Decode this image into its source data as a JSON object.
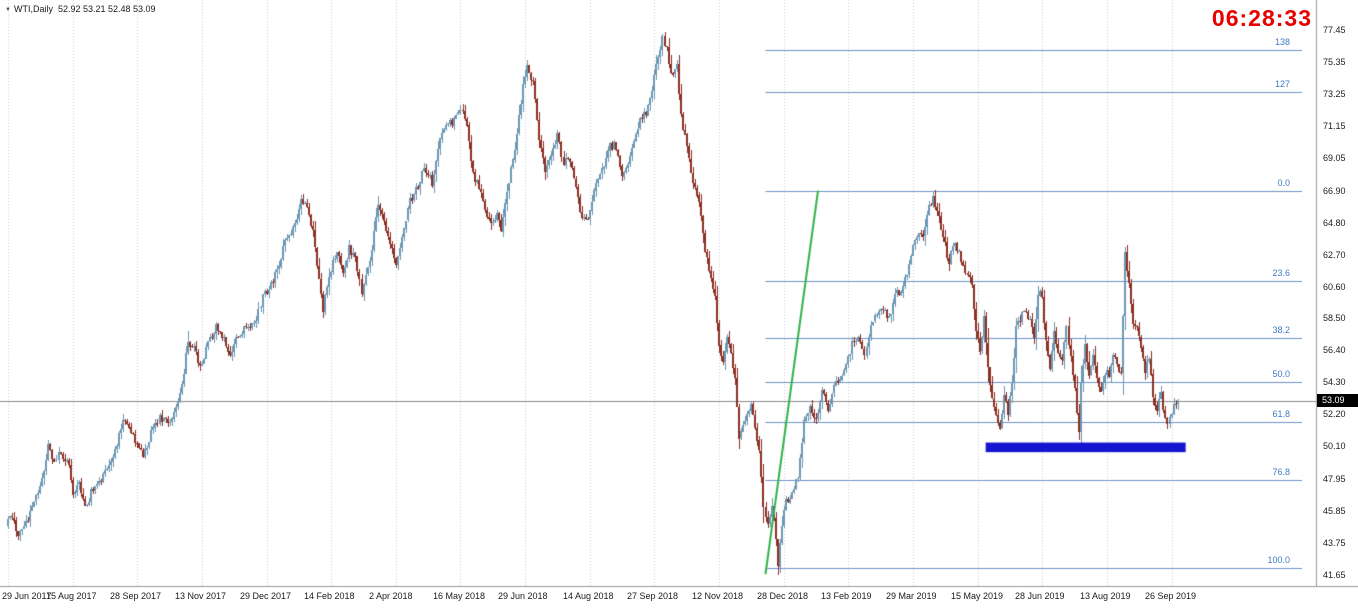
{
  "window": {
    "symbol_label": "WTI,Daily",
    "ohlc_text": "52.92 53.21 52.48 53.09",
    "clock": "06:28:33"
  },
  "axes": {
    "price_labels": [
      "77.45",
      "75.35",
      "73.25",
      "71.15",
      "69.05",
      "66.90",
      "64.80",
      "62.70",
      "60.60",
      "58.50",
      "56.40",
      "54.30",
      "52.20",
      "50.10",
      "47.95",
      "45.85",
      "43.75",
      "41.65"
    ],
    "date_labels": [
      "29 Jun 2017",
      "15 Aug 2017",
      "28 Sep 2017",
      "13 Nov 2017",
      "29 Dec 2017",
      "14 Feb 2018",
      "2 Apr 2018",
      "16 May 2018",
      "29 Jun 2018",
      "14 Aug 2018",
      "27 Sep 2018",
      "12 Nov 2018",
      "28 Dec 2018",
      "13 Feb 2019",
      "29 Mar 2019",
      "15 May 2019",
      "28 Jun 2019",
      "13 Aug 2019",
      "26 Sep 2019"
    ],
    "current_price": "53.09"
  },
  "theme": {
    "clock_color": "#e60000",
    "badge_bg": "#000000",
    "fib_label_color": "#3f7bc0"
  },
  "chart_data": {
    "type": "candlestick",
    "symbol": "WTI",
    "timeframe": "Daily",
    "title": "WTI,Daily",
    "ohlc_current": {
      "open": 52.92,
      "high": 53.21,
      "low": 52.48,
      "close": 53.09
    },
    "ylim": [
      41.65,
      77.45
    ],
    "n_candles": 580,
    "grid": "vertical-dashed",
    "price_path": [
      [
        0,
        44.9
      ],
      [
        3,
        45.6
      ],
      [
        6,
        44.2
      ],
      [
        10,
        45.1
      ],
      [
        14,
        46.4
      ],
      [
        18,
        47.8
      ],
      [
        21,
        50.1
      ],
      [
        24,
        49.1
      ],
      [
        27,
        49.7
      ],
      [
        31,
        48.7
      ],
      [
        33,
        47.1
      ],
      [
        36,
        47.8
      ],
      [
        39,
        46.0
      ],
      [
        43,
        47.4
      ],
      [
        47,
        47.9
      ],
      [
        50,
        48.6
      ],
      [
        54,
        49.8
      ],
      [
        58,
        51.8
      ],
      [
        61,
        51.4
      ],
      [
        64,
        50.4
      ],
      [
        68,
        49.4
      ],
      [
        72,
        51.0
      ],
      [
        76,
        52.0
      ],
      [
        80,
        51.6
      ],
      [
        84,
        52.7
      ],
      [
        87,
        54.1
      ],
      [
        90,
        57.0
      ],
      [
        93,
        56.7
      ],
      [
        96,
        55.3
      ],
      [
        100,
        56.8
      ],
      [
        104,
        58.0
      ],
      [
        107,
        57.3
      ],
      [
        111,
        56.2
      ],
      [
        115,
        57.4
      ],
      [
        119,
        57.9
      ],
      [
        123,
        58.1
      ],
      [
        127,
        59.9
      ],
      [
        130,
        60.4
      ],
      [
        134,
        61.7
      ],
      [
        138,
        63.6
      ],
      [
        142,
        64.4
      ],
      [
        146,
        66.2
      ],
      [
        149,
        65.7
      ],
      [
        152,
        64.1
      ],
      [
        155,
        61.0
      ],
      [
        157,
        59.2
      ],
      [
        160,
        61.4
      ],
      [
        164,
        62.8
      ],
      [
        167,
        61.6
      ],
      [
        170,
        63.1
      ],
      [
        173,
        62.5
      ],
      [
        176,
        60.2
      ],
      [
        180,
        62.2
      ],
      [
        184,
        65.9
      ],
      [
        187,
        64.8
      ],
      [
        190,
        63.3
      ],
      [
        193,
        62.2
      ],
      [
        196,
        63.6
      ],
      [
        200,
        66.3
      ],
      [
        204,
        67.2
      ],
      [
        207,
        68.5
      ],
      [
        211,
        67.4
      ],
      [
        214,
        69.8
      ],
      [
        217,
        71.1
      ],
      [
        221,
        71.4
      ],
      [
        225,
        72.3
      ],
      [
        228,
        71.2
      ],
      [
        231,
        67.9
      ],
      [
        234,
        67.1
      ],
      [
        237,
        65.8
      ],
      [
        240,
        64.7
      ],
      [
        243,
        65.2
      ],
      [
        245,
        64.3
      ],
      [
        247,
        65.9
      ],
      [
        250,
        68.2
      ],
      [
        253,
        70.6
      ],
      [
        256,
        73.9
      ],
      [
        258,
        75.2
      ],
      [
        261,
        73.9
      ],
      [
        264,
        70.4
      ],
      [
        267,
        68.2
      ],
      [
        270,
        69.4
      ],
      [
        273,
        70.5
      ],
      [
        276,
        68.8
      ],
      [
        279,
        69.0
      ],
      [
        282,
        67.1
      ],
      [
        285,
        65.0
      ],
      [
        288,
        64.9
      ],
      [
        290,
        66.1
      ],
      [
        293,
        67.8
      ],
      [
        296,
        68.6
      ],
      [
        299,
        69.9
      ],
      [
        302,
        69.8
      ],
      [
        305,
        67.6
      ],
      [
        308,
        68.5
      ],
      [
        311,
        70.3
      ],
      [
        314,
        71.5
      ],
      [
        317,
        72.0
      ],
      [
        320,
        73.4
      ],
      [
        322,
        75.3
      ],
      [
        325,
        76.9
      ],
      [
        327,
        76.2
      ],
      [
        329,
        74.4
      ],
      [
        332,
        75.0
      ],
      [
        334,
        71.9
      ],
      [
        337,
        69.6
      ],
      [
        340,
        67.2
      ],
      [
        343,
        66.3
      ],
      [
        346,
        63.0
      ],
      [
        348,
        61.7
      ],
      [
        351,
        59.8
      ],
      [
        353,
        56.6
      ],
      [
        355,
        55.8
      ],
      [
        357,
        57.1
      ],
      [
        359,
        56.4
      ],
      [
        361,
        54.5
      ],
      [
        363,
        50.8
      ],
      [
        366,
        51.6
      ],
      [
        369,
        52.8
      ],
      [
        371,
        51.1
      ],
      [
        373,
        50.0
      ],
      [
        375,
        46.1
      ],
      [
        377,
        44.8
      ],
      [
        379,
        46.3
      ],
      [
        381,
        44.2
      ],
      [
        382,
        42.4
      ],
      [
        384,
        45.0
      ],
      [
        386,
        46.5
      ],
      [
        389,
        47.0
      ],
      [
        392,
        48.1
      ],
      [
        395,
        51.6
      ],
      [
        398,
        52.7
      ],
      [
        401,
        51.8
      ],
      [
        404,
        53.8
      ],
      [
        407,
        52.5
      ],
      [
        410,
        54.1
      ],
      [
        413,
        54.5
      ],
      [
        416,
        55.4
      ],
      [
        419,
        56.9
      ],
      [
        422,
        57.1
      ],
      [
        425,
        56.2
      ],
      [
        428,
        58.2
      ],
      [
        431,
        58.6
      ],
      [
        434,
        59.0
      ],
      [
        437,
        58.5
      ],
      [
        440,
        60.0
      ],
      [
        443,
        60.3
      ],
      [
        446,
        61.6
      ],
      [
        449,
        63.2
      ],
      [
        451,
        64.0
      ],
      [
        454,
        63.7
      ],
      [
        457,
        65.8
      ],
      [
        459,
        66.4
      ],
      [
        461,
        65.6
      ],
      [
        464,
        63.9
      ],
      [
        467,
        62.1
      ],
      [
        469,
        63.5
      ],
      [
        472,
        62.8
      ],
      [
        474,
        61.9
      ],
      [
        476,
        61.3
      ],
      [
        478,
        60.8
      ],
      [
        480,
        57.9
      ],
      [
        482,
        56.5
      ],
      [
        484,
        58.5
      ],
      [
        486,
        55.4
      ],
      [
        488,
        53.2
      ],
      [
        490,
        52.0
      ],
      [
        492,
        51.3
      ],
      [
        494,
        53.3
      ],
      [
        496,
        52.4
      ],
      [
        498,
        54.1
      ],
      [
        500,
        57.8
      ],
      [
        502,
        58.5
      ],
      [
        504,
        59.0
      ],
      [
        507,
        58.4
      ],
      [
        509,
        57.2
      ],
      [
        511,
        60.2
      ],
      [
        513,
        60.0
      ],
      [
        515,
        56.9
      ],
      [
        517,
        55.4
      ],
      [
        519,
        57.7
      ],
      [
        521,
        56.1
      ],
      [
        523,
        55.7
      ],
      [
        525,
        58.1
      ],
      [
        527,
        55.8
      ],
      [
        529,
        53.8
      ],
      [
        531,
        51.2
      ],
      [
        532,
        54.3
      ],
      [
        534,
        57.0
      ],
      [
        536,
        54.8
      ],
      [
        538,
        56.2
      ],
      [
        540,
        54.6
      ],
      [
        542,
        53.6
      ],
      [
        544,
        55.0
      ],
      [
        546,
        54.8
      ],
      [
        548,
        56.1
      ],
      [
        550,
        55.7
      ],
      [
        552,
        54.7
      ],
      [
        554,
        62.9
      ],
      [
        556,
        60.8
      ],
      [
        558,
        58.2
      ],
      [
        560,
        58.0
      ],
      [
        562,
        56.8
      ],
      [
        564,
        55.1
      ],
      [
        566,
        56.1
      ],
      [
        568,
        53.5
      ],
      [
        570,
        52.4
      ],
      [
        572,
        53.6
      ],
      [
        573,
        52.3
      ],
      [
        575,
        51.6
      ],
      [
        577,
        52.3
      ],
      [
        579,
        53.0
      ]
    ],
    "fib_from_day": 375,
    "fibonacci_levels": [
      {
        "label": "138",
        "price": 76.15
      },
      {
        "label": "127",
        "price": 73.4
      },
      {
        "label": "0.0",
        "price": 66.9
      },
      {
        "label": "23.6",
        "price": 60.95
      },
      {
        "label": "38.2",
        "price": 57.2
      },
      {
        "label": "50.0",
        "price": 54.3
      },
      {
        "label": "61.8",
        "price": 51.7
      },
      {
        "label": "76.8",
        "price": 47.9
      },
      {
        "label": "100.0",
        "price": 42.1
      }
    ],
    "trendline": {
      "from_day": 375,
      "from_price": 41.7,
      "to_day": 401,
      "to_price": 66.9,
      "color": "#30b24a"
    },
    "support_zone": {
      "from_day": 484,
      "to_day": 583,
      "price_top": 50.35,
      "price_bottom": 49.72,
      "color": "#1515d0"
    },
    "colors": {
      "up": "#6d98b4",
      "down": "#8b3124",
      "fib": "#6f93c9",
      "grid": "#cfcfcf",
      "bid_line": "#8c8c8c",
      "axis_line": "#9a9a9a"
    }
  }
}
